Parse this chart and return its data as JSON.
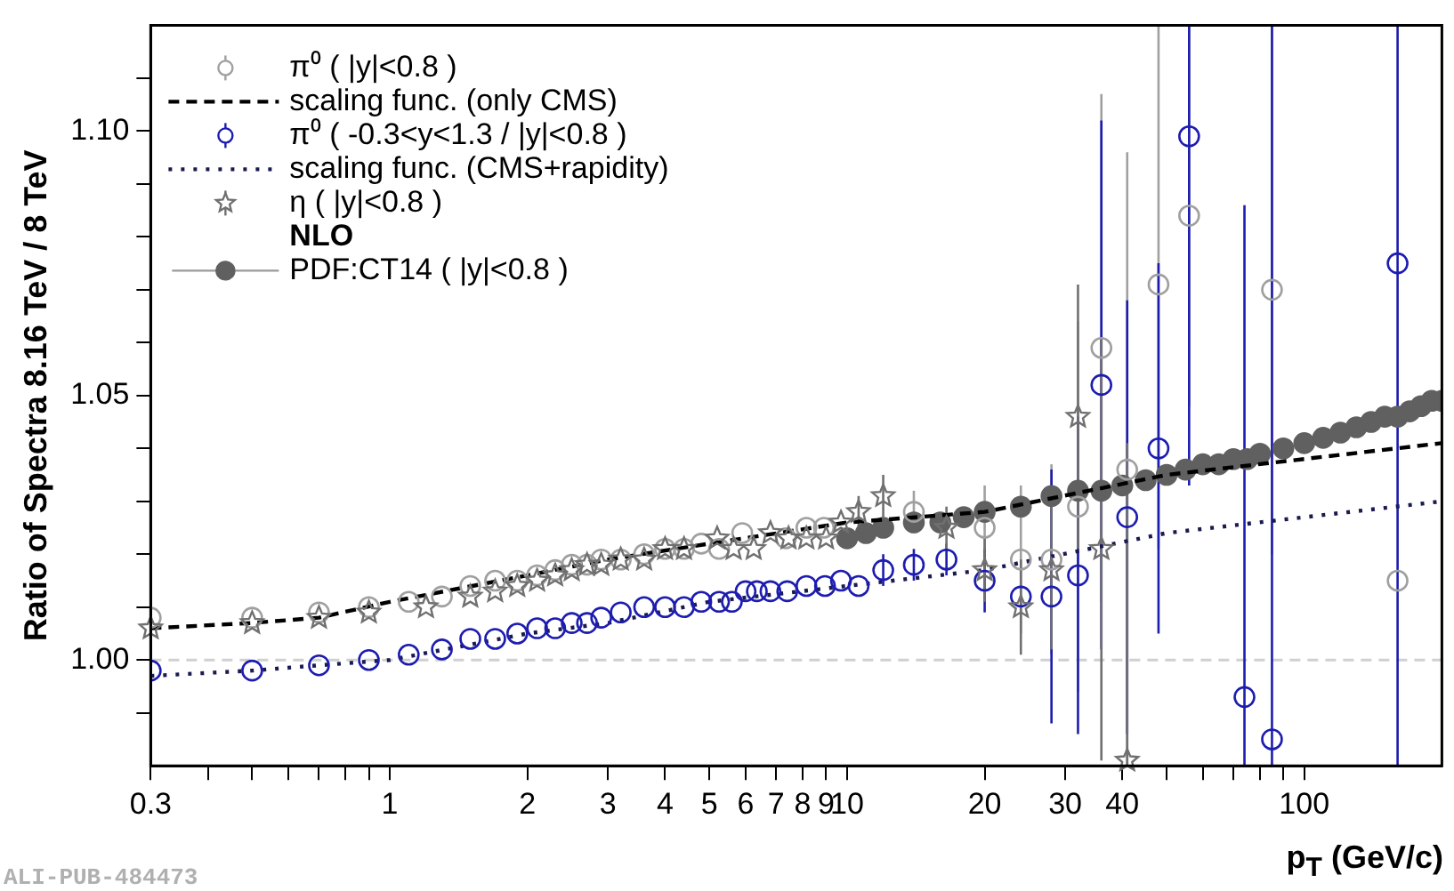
{
  "chart_data": {
    "type": "scatter",
    "ylabel": "Ratio of Spectra 8.16 TeV / 8 TeV",
    "xlabel": "p$_{T}$ (GeV/c)",
    "log": "x",
    "xlim": [
      0.3,
      200
    ],
    "ylim": [
      0.98,
      1.12
    ],
    "xticks": [
      0.3,
      {
        "value": 0.4,
        "label": null
      },
      {
        "value": 0.5,
        "label": null
      },
      {
        "value": 0.6,
        "label": null
      },
      {
        "value": 0.7,
        "label": null
      },
      {
        "value": 0.8,
        "label": null
      },
      {
        "value": 0.9,
        "label": null
      },
      1,
      2,
      3,
      4,
      5,
      6,
      7,
      8,
      9,
      10,
      20,
      30,
      40,
      {
        "value": 50,
        "label": null
      },
      {
        "value": 60,
        "label": null
      },
      {
        "value": 70,
        "label": null
      },
      {
        "value": 80,
        "label": null
      },
      {
        "value": 90,
        "label": null
      },
      100
    ],
    "yticks": [
      {
        "value": 0.99,
        "label": null
      },
      {
        "value": 1.0,
        "label": "1.00"
      },
      {
        "value": 1.01,
        "label": null
      },
      {
        "value": 1.02,
        "label": null
      },
      {
        "value": 1.03,
        "label": null
      },
      {
        "value": 1.04,
        "label": null
      },
      {
        "value": 1.05,
        "label": "1.05"
      },
      {
        "value": 1.06,
        "label": null
      },
      {
        "value": 1.07,
        "label": null
      },
      {
        "value": 1.08,
        "label": null
      },
      {
        "value": 1.09,
        "label": null
      },
      {
        "value": 1.1,
        "label": "1.10"
      },
      {
        "value": 1.11,
        "label": null
      }
    ],
    "grid": false,
    "legend": "top left",
    "ref_lines": [
      {
        "axis": "y",
        "value": 1.0,
        "color": "#d0d0d0",
        "line_style": "dashed"
      }
    ],
    "annotations": [
      "NLO",
      "ALI-PUB-484473"
    ],
    "series": [
      {
        "name": "π⁰ ( |y|<0.8 )",
        "type": "scatter",
        "marker": "circle",
        "color": "#a0a0a0",
        "x": [
          0.3,
          0.5,
          0.7,
          0.9,
          1.1,
          1.3,
          1.5,
          1.7,
          1.9,
          2.1,
          2.3,
          2.5,
          2.7,
          2.9,
          3.2,
          3.6,
          4.0,
          4.4,
          4.8,
          5.25,
          5.9,
          7.35,
          8.15,
          8.9,
          14,
          20,
          24,
          28,
          32,
          36,
          41,
          48,
          56,
          85,
          160
        ],
        "values": [
          1.008,
          1.008,
          1.009,
          1.01,
          1.011,
          1.012,
          1.014,
          1.015,
          1.015,
          1.016,
          1.017,
          1.018,
          1.018,
          1.019,
          1.019,
          1.02,
          1.021,
          1.021,
          1.022,
          1.021,
          1.024,
          1.023,
          1.025,
          1.025,
          1.028,
          1.025,
          1.019,
          1.019,
          1.029,
          1.059,
          1.036,
          1.071,
          1.084,
          1.07,
          1.015
        ],
        "errors": [
          null,
          null,
          null,
          null,
          null,
          null,
          null,
          null,
          null,
          null,
          null,
          null,
          null,
          null,
          null,
          null,
          null,
          null,
          null,
          null,
          null,
          null,
          null,
          null,
          0.004,
          0.008,
          0.014,
          0.018,
          0.035,
          0.048,
          [
            0.98,
            1.096
          ],
          0.05,
          0.036,
          0.05,
          null
        ]
      },
      {
        "name": "scaling func. (only CMS)",
        "type": "line",
        "line_style": "dashed",
        "color": "#000000",
        "x": [
          0.3,
          0.5,
          0.7,
          1,
          2,
          3,
          5,
          10,
          20,
          50,
          100,
          200
        ],
        "values": [
          1.006,
          1.007,
          1.008,
          1.011,
          1.016,
          1.019,
          1.022,
          1.026,
          1.028,
          1.035,
          1.038,
          1.041
        ]
      },
      {
        "name": "π⁰ ( -0.3<y<1.3 / |y|<0.8 )",
        "type": "scatter",
        "marker": "circle",
        "color": "#1c1cb0",
        "x": [
          0.3,
          0.5,
          0.7,
          0.9,
          1.1,
          1.3,
          1.5,
          1.7,
          1.9,
          2.1,
          2.3,
          2.5,
          2.7,
          2.9,
          3.2,
          3.6,
          4.0,
          4.4,
          4.8,
          5.25,
          5.6,
          6.0,
          6.35,
          6.8,
          7.4,
          8.15,
          8.95,
          9.7,
          10.6,
          12,
          14,
          16.5,
          20,
          24,
          28,
          32,
          36,
          41,
          48,
          56,
          74,
          85,
          160
        ],
        "values": [
          0.998,
          0.998,
          0.999,
          1.0,
          1.001,
          1.002,
          1.004,
          1.004,
          1.005,
          1.006,
          1.006,
          1.007,
          1.007,
          1.008,
          1.009,
          1.01,
          1.01,
          1.01,
          1.011,
          1.011,
          1.011,
          1.013,
          1.013,
          1.013,
          1.013,
          1.014,
          1.014,
          1.015,
          1.014,
          1.017,
          1.018,
          1.019,
          1.015,
          1.012,
          1.012,
          1.016,
          1.052,
          1.027,
          1.04,
          1.099,
          0.993,
          0.985,
          1.075
        ],
        "errors": [
          null,
          null,
          null,
          null,
          null,
          null,
          null,
          null,
          null,
          null,
          null,
          null,
          null,
          null,
          null,
          null,
          null,
          null,
          null,
          null,
          null,
          null,
          null,
          null,
          null,
          null,
          null,
          null,
          null,
          0.003,
          0.003,
          0.003,
          0.006,
          null,
          0.024,
          0.03,
          0.05,
          0.041,
          0.035,
          [
            1.033,
            1.12
          ],
          [
            0.98,
            1.086
          ],
          [
            0.98,
            1.12
          ],
          [
            0.98,
            1.12
          ]
        ]
      },
      {
        "name": "scaling func. (CMS+rapidity)",
        "type": "line",
        "line_style": "dotted",
        "color": "#1a1a50",
        "x": [
          0.3,
          0.5,
          0.7,
          1,
          2,
          3,
          5,
          10,
          20,
          50,
          100,
          200
        ],
        "values": [
          0.997,
          0.998,
          0.999,
          1.0,
          1.005,
          1.007,
          1.011,
          1.014,
          1.017,
          1.024,
          1.027,
          1.03
        ]
      },
      {
        "name": "η ( |y|<0.8 )",
        "type": "scatter",
        "marker": "star",
        "color": "#707070",
        "x": [
          0.3,
          0.5,
          0.7,
          0.9,
          1.2,
          1.5,
          1.7,
          1.9,
          2.1,
          2.3,
          2.5,
          2.7,
          2.9,
          3.2,
          3.6,
          4.0,
          4.4,
          5.2,
          5.65,
          6.25,
          6.8,
          7.45,
          8.15,
          9.0,
          9.7,
          10.6,
          12,
          16.5,
          20,
          24,
          28,
          32,
          36,
          41
        ],
        "values": [
          1.006,
          1.007,
          1.008,
          1.009,
          1.01,
          1.012,
          1.013,
          1.014,
          1.015,
          1.016,
          1.017,
          1.018,
          1.018,
          1.019,
          1.019,
          1.021,
          1.021,
          1.023,
          1.021,
          1.021,
          1.024,
          1.023,
          1.023,
          1.023,
          1.026,
          1.028,
          1.031,
          1.025,
          1.017,
          1.01,
          1.017,
          1.046,
          1.021,
          0.981
        ],
        "errors": [
          null,
          null,
          null,
          null,
          null,
          null,
          null,
          null,
          null,
          null,
          null,
          null,
          null,
          null,
          null,
          null,
          null,
          null,
          null,
          null,
          null,
          null,
          null,
          null,
          null,
          0.003,
          0.004,
          0.004,
          0.006,
          0.009,
          0.015,
          0.025,
          0.04,
          [
            0.98,
            1.041
          ]
        ]
      },
      {
        "name": "PDF:CT14 ( |y|<0.8 )",
        "type": "scatter",
        "marker": "circle",
        "color": "#606060",
        "x": [
          10,
          11,
          12,
          14,
          16,
          18,
          20,
          24,
          28,
          32,
          36,
          40,
          45,
          50,
          55,
          60,
          65,
          70,
          75,
          80,
          90,
          100,
          110,
          120,
          130,
          140,
          150,
          160,
          170,
          180,
          190,
          200
        ],
        "values": [
          1.023,
          1.024,
          1.025,
          1.026,
          1.026,
          1.027,
          1.028,
          1.029,
          1.031,
          1.032,
          1.032,
          1.033,
          1.034,
          1.035,
          1.036,
          1.037,
          1.037,
          1.038,
          1.038,
          1.039,
          1.04,
          1.041,
          1.042,
          1.043,
          1.044,
          1.045,
          1.046,
          1.046,
          1.047,
          1.048,
          1.049,
          1.049
        ]
      }
    ]
  }
}
